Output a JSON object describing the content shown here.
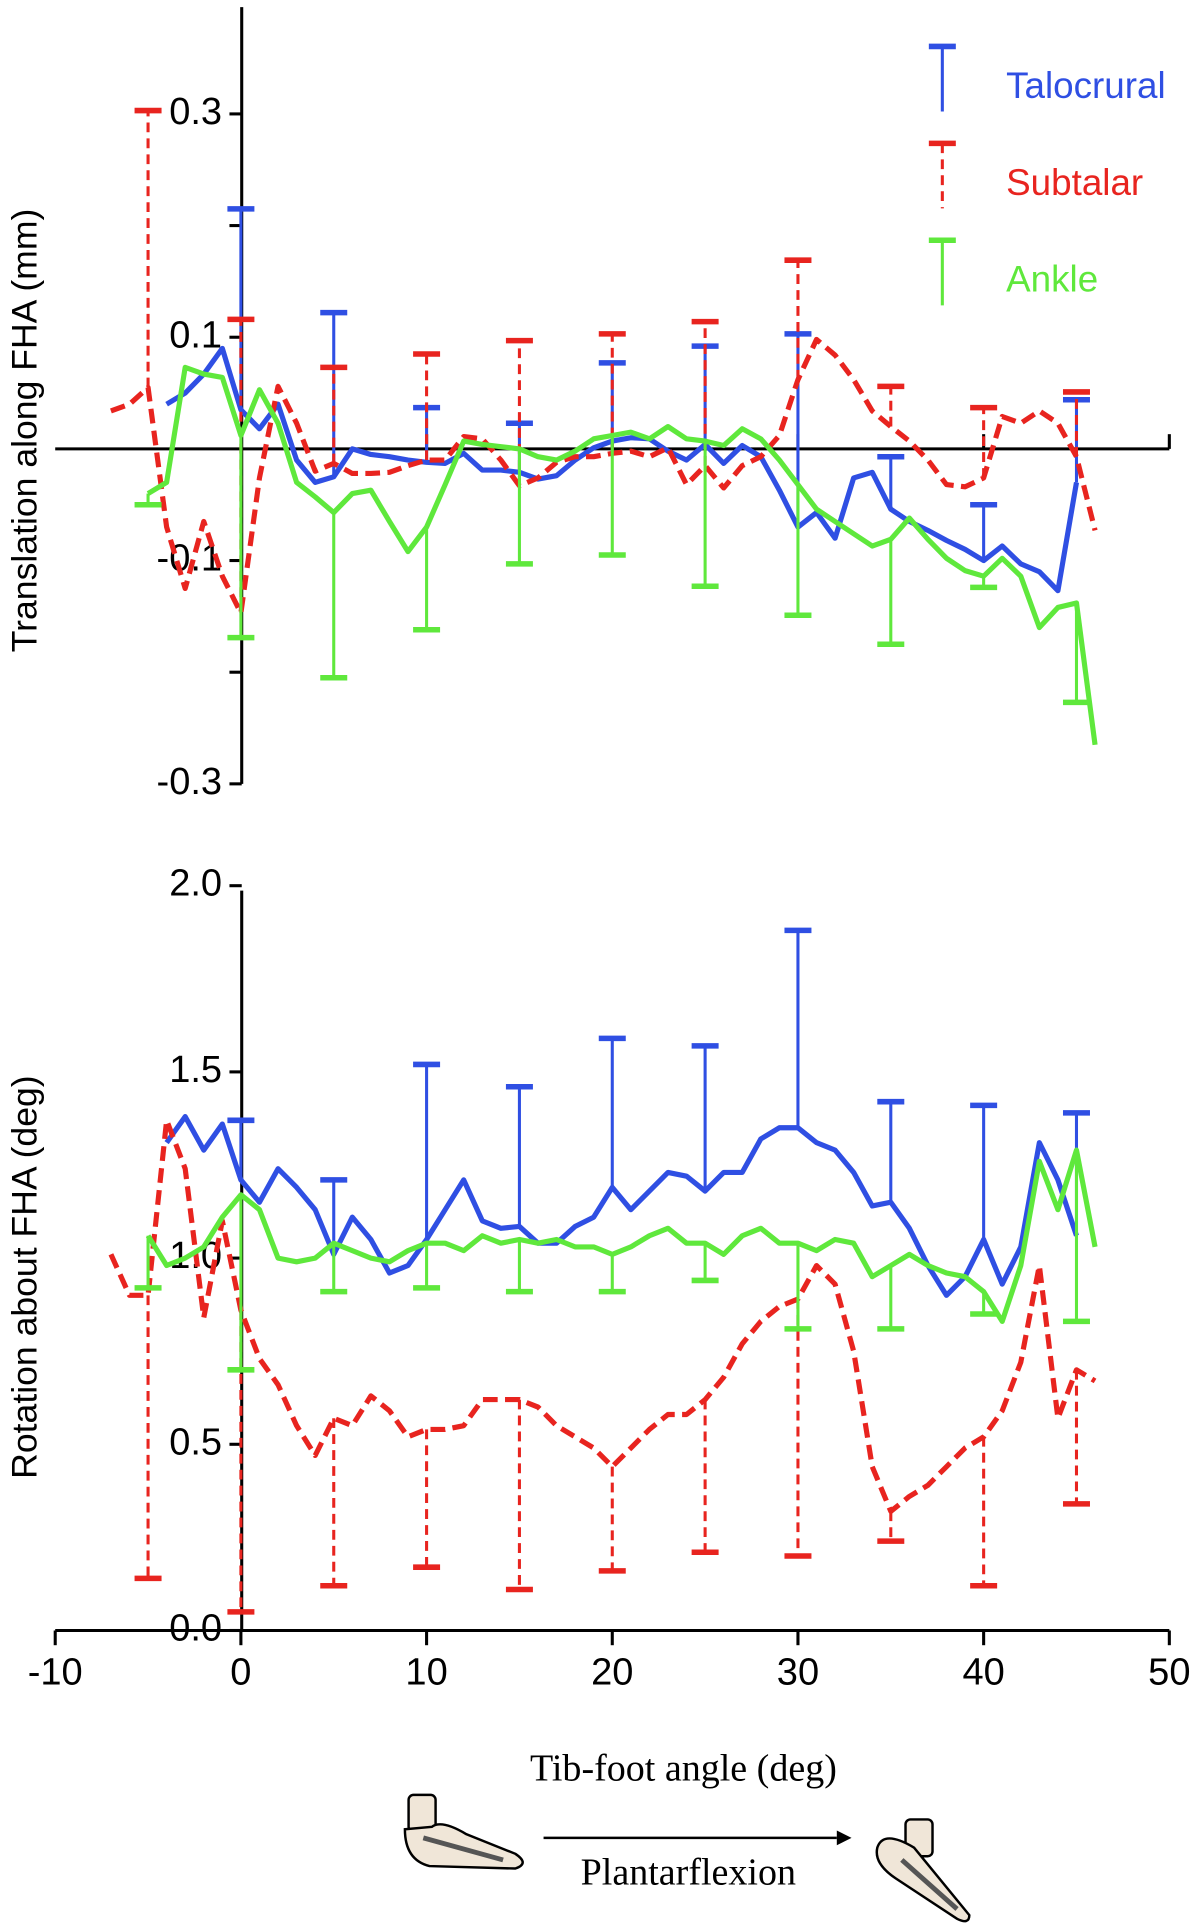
{
  "chart_data": [
    {
      "type": "line",
      "ylabel": "Translation along FHA (mm)",
      "legend": "upper right",
      "zero_line": true,
      "x": [
        -7,
        -6,
        -5,
        -4,
        -3,
        -2,
        -1,
        0,
        1,
        2,
        3,
        4,
        5,
        6,
        7,
        8,
        9,
        10,
        11,
        12,
        13,
        14,
        15,
        16,
        17,
        18,
        19,
        20,
        21,
        22,
        23,
        24,
        25,
        26,
        27,
        28,
        29,
        30,
        31,
        32,
        33,
        34,
        35,
        36,
        37,
        38,
        39,
        40,
        41,
        42,
        43,
        44,
        45,
        46
      ],
      "xlim": [
        -10,
        50
      ],
      "minor_xticks": [
        10,
        20,
        30,
        40,
        50
      ],
      "ylim": [
        -0.3,
        0.4
      ],
      "yticks": [
        -0.3,
        -0.1,
        0.1,
        0.3
      ],
      "minor_yticks": [
        -0.2,
        0.2
      ],
      "series": [
        {
          "name": "Talocrural",
          "color": "#2f4fe3",
          "dashed": false,
          "error_direction": "up",
          "values": [
            null,
            null,
            null,
            0.04,
            0.05,
            0.067,
            0.09,
            0.035,
            0.018,
            0.04,
            -0.01,
            -0.03,
            -0.025,
            0,
            -0.005,
            -0.007,
            -0.01,
            -0.012,
            -0.013,
            -0.004,
            -0.019,
            -0.019,
            -0.021,
            -0.027,
            -0.024,
            -0.01,
            0.001,
            0.007,
            0.01,
            0.009,
            -0.002,
            -0.01,
            0.004,
            -0.013,
            0.003,
            -0.007,
            -0.037,
            -0.07,
            -0.057,
            -0.08,
            -0.026,
            -0.021,
            -0.054,
            -0.065,
            -0.073,
            -0.082,
            -0.09,
            -0.1,
            -0.087,
            -0.103,
            -0.11,
            -0.127,
            -0.03,
            null
          ],
          "errors": [
            null,
            null,
            null,
            null,
            null,
            null,
            null,
            0.18,
            null,
            null,
            null,
            null,
            0.147,
            null,
            null,
            null,
            null,
            0.049,
            null,
            null,
            null,
            null,
            0.044,
            null,
            null,
            null,
            null,
            0.07,
            null,
            null,
            null,
            null,
            0.088,
            null,
            null,
            null,
            null,
            0.173,
            null,
            null,
            null,
            null,
            0.047,
            null,
            null,
            null,
            null,
            0.05,
            null,
            null,
            null,
            null,
            0.074,
            null
          ]
        },
        {
          "name": "Subtalar",
          "color": "#e8241f",
          "dashed": true,
          "error_direction": "up",
          "values": [
            0.034,
            0.04,
            0.055,
            -0.07,
            -0.125,
            -0.065,
            -0.114,
            -0.147,
            -0.026,
            0.056,
            0.023,
            -0.02,
            -0.013,
            -0.022,
            -0.022,
            -0.021,
            -0.015,
            -0.01,
            -0.01,
            0.011,
            0.009,
            -0.01,
            -0.033,
            -0.026,
            -0.012,
            -0.007,
            -0.007,
            -0.004,
            -0.002,
            -0.007,
            0.001,
            -0.032,
            -0.015,
            -0.035,
            -0.015,
            -0.007,
            0.012,
            0.062,
            0.098,
            0.084,
            0.062,
            0.034,
            0.02,
            0.007,
            -0.01,
            -0.032,
            -0.034,
            -0.026,
            0.029,
            0.023,
            0.034,
            0.023,
            -0.007,
            -0.073
          ],
          "errors": [
            null,
            null,
            0.248,
            null,
            null,
            null,
            null,
            0.263,
            null,
            null,
            null,
            null,
            0.086,
            null,
            null,
            null,
            null,
            0.095,
            null,
            null,
            null,
            null,
            0.13,
            null,
            null,
            null,
            null,
            0.107,
            null,
            null,
            null,
            null,
            0.129,
            null,
            null,
            null,
            null,
            0.107,
            null,
            null,
            null,
            null,
            0.036,
            null,
            null,
            null,
            null,
            0.063,
            null,
            null,
            null,
            null,
            0.058,
            null
          ]
        },
        {
          "name": "Ankle",
          "color": "#5fe83c",
          "dashed": false,
          "error_direction": "down",
          "values": [
            null,
            null,
            -0.04,
            -0.03,
            0.073,
            0.067,
            0.064,
            0.012,
            0.053,
            0.023,
            -0.03,
            -0.043,
            -0.057,
            -0.04,
            -0.037,
            -0.065,
            -0.092,
            -0.07,
            -0.032,
            0.007,
            0.004,
            0.002,
            0,
            -0.007,
            -0.01,
            -0.002,
            0.009,
            0.012,
            0.015,
            0.009,
            0.02,
            0.009,
            0.007,
            0.003,
            0.018,
            0.009,
            -0.01,
            -0.032,
            -0.054,
            -0.065,
            -0.076,
            -0.087,
            -0.081,
            -0.062,
            -0.081,
            -0.098,
            -0.109,
            -0.114,
            -0.098,
            -0.114,
            -0.16,
            -0.142,
            -0.138,
            -0.265
          ],
          "errors": [
            null,
            null,
            0.01,
            null,
            null,
            null,
            null,
            0.181,
            null,
            null,
            null,
            null,
            0.148,
            null,
            null,
            null,
            null,
            0.092,
            null,
            null,
            null,
            null,
            0.103,
            null,
            null,
            null,
            null,
            0.107,
            null,
            null,
            null,
            null,
            0.13,
            null,
            null,
            null,
            null,
            0.117,
            null,
            null,
            null,
            null,
            0.094,
            null,
            null,
            null,
            null,
            0.01,
            null,
            null,
            null,
            null,
            0.089,
            null
          ]
        }
      ]
    },
    {
      "type": "line",
      "ylabel": "Rotation about FHA (deg)",
      "xlabel": "Tib-foot angle (deg)",
      "annotation": "Plantarflexion",
      "x": [
        -7,
        -6,
        -5,
        -4,
        -3,
        -2,
        -1,
        0,
        1,
        2,
        3,
        4,
        5,
        6,
        7,
        8,
        9,
        10,
        11,
        12,
        13,
        14,
        15,
        16,
        17,
        18,
        19,
        20,
        21,
        22,
        23,
        24,
        25,
        26,
        27,
        28,
        29,
        30,
        31,
        32,
        33,
        34,
        35,
        36,
        37,
        38,
        39,
        40,
        41,
        42,
        43,
        44,
        45,
        46
      ],
      "xlim": [
        -10,
        50
      ],
      "xticks": [
        -10,
        0,
        10,
        20,
        30,
        40,
        50
      ],
      "ylim": [
        0,
        2
      ],
      "yticks": [
        {
          "value": 0,
          "label": "0.0"
        },
        0.5,
        {
          "value": 1,
          "label": "1.0"
        },
        1.5,
        {
          "value": 2,
          "label": "2.0"
        }
      ],
      "series": [
        {
          "color": "#2f4fe3",
          "dashed": false,
          "error_direction": "up",
          "values": [
            null,
            null,
            null,
            1.31,
            1.38,
            1.29,
            1.36,
            1.21,
            1.15,
            1.24,
            1.19,
            1.13,
            1.01,
            1.11,
            1.05,
            0.96,
            0.98,
            1.05,
            1.13,
            1.21,
            1.1,
            1.08,
            1.085,
            1.04,
            1.04,
            1.085,
            1.11,
            1.19,
            1.13,
            1.18,
            1.23,
            1.22,
            1.18,
            1.23,
            1.23,
            1.32,
            1.35,
            1.35,
            1.31,
            1.29,
            1.23,
            1.14,
            1.15,
            1.08,
            0.98,
            0.9,
            0.95,
            1.05,
            0.93,
            1.03,
            1.31,
            1.21,
            1.06,
            null
          ],
          "errors": [
            null,
            null,
            null,
            null,
            null,
            null,
            null,
            0.16,
            null,
            null,
            null,
            null,
            0.2,
            null,
            null,
            null,
            null,
            0.47,
            null,
            null,
            null,
            null,
            0.375,
            null,
            null,
            null,
            null,
            0.4,
            null,
            null,
            null,
            null,
            0.39,
            null,
            null,
            null,
            null,
            0.53,
            null,
            null,
            null,
            null,
            0.27,
            null,
            null,
            null,
            null,
            0.36,
            null,
            null,
            null,
            null,
            0.33,
            null
          ]
        },
        {
          "color": "#e8241f",
          "dashed": true,
          "error_direction": "down",
          "values": [
            1.01,
            0.9,
            0.9,
            1.37,
            1.24,
            0.84,
            1.1,
            0.86,
            0.73,
            0.66,
            0.55,
            0.47,
            0.57,
            0.55,
            0.63,
            0.59,
            0.52,
            0.54,
            0.54,
            0.55,
            0.62,
            0.62,
            0.62,
            0.6,
            0.55,
            0.52,
            0.49,
            0.44,
            0.49,
            0.54,
            0.58,
            0.58,
            0.62,
            0.68,
            0.77,
            0.83,
            0.87,
            0.89,
            0.98,
            0.93,
            0.75,
            0.44,
            0.32,
            0.36,
            0.39,
            0.44,
            0.49,
            0.52,
            0.59,
            0.72,
            0.98,
            0.57,
            0.7,
            0.67
          ],
          "errors": [
            null,
            null,
            0.76,
            null,
            null,
            null,
            null,
            0.81,
            null,
            null,
            null,
            null,
            0.45,
            null,
            null,
            null,
            null,
            0.37,
            null,
            null,
            null,
            null,
            0.51,
            null,
            null,
            null,
            null,
            0.28,
            null,
            null,
            null,
            null,
            0.41,
            null,
            null,
            null,
            null,
            0.69,
            null,
            null,
            null,
            null,
            0.08,
            null,
            null,
            null,
            null,
            0.4,
            null,
            null,
            null,
            null,
            0.36,
            null
          ]
        },
        {
          "color": "#5fe83c",
          "dashed": false,
          "error_direction": "down",
          "values": [
            null,
            null,
            1.06,
            0.98,
            1.0,
            1.03,
            1.11,
            1.17,
            1.13,
            1.0,
            0.99,
            1.0,
            1.04,
            1.02,
            1.0,
            0.99,
            1.02,
            1.04,
            1.04,
            1.02,
            1.06,
            1.04,
            1.05,
            1.04,
            1.05,
            1.03,
            1.03,
            1.01,
            1.03,
            1.06,
            1.08,
            1.04,
            1.04,
            1.01,
            1.06,
            1.08,
            1.04,
            1.04,
            1.02,
            1.05,
            1.04,
            0.95,
            0.98,
            1.01,
            0.98,
            0.96,
            0.95,
            0.91,
            0.83,
            0.98,
            1.26,
            1.13,
            1.29,
            1.03
          ],
          "errors": [
            null,
            null,
            0.14,
            null,
            null,
            null,
            null,
            0.47,
            null,
            null,
            null,
            null,
            0.13,
            null,
            null,
            null,
            null,
            0.12,
            null,
            null,
            null,
            null,
            0.14,
            null,
            null,
            null,
            null,
            0.1,
            null,
            null,
            null,
            null,
            0.1,
            null,
            null,
            null,
            null,
            0.23,
            null,
            null,
            null,
            null,
            0.17,
            null,
            null,
            null,
            null,
            0.06,
            null,
            null,
            null,
            null,
            0.46,
            null
          ]
        }
      ]
    }
  ]
}
